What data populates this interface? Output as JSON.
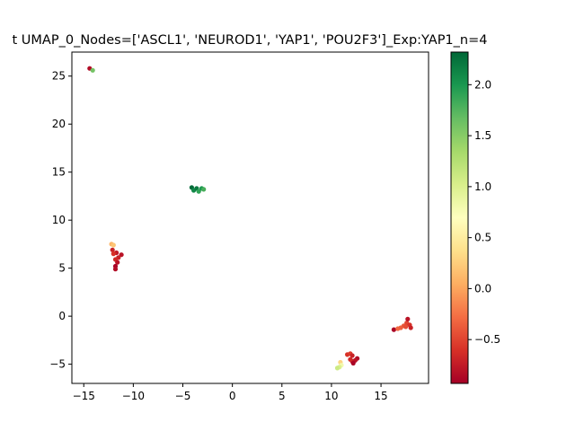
{
  "chart_data": {
    "type": "scatter",
    "title": "t UMAP_0_Nodes=['ASCL1', 'NEUROD1', 'YAP1', 'POU2F3']_Exp:YAP1_n=4",
    "xlabel": "",
    "ylabel": "",
    "xlim": [
      -16.2,
      19.8
    ],
    "ylim": [
      -7.0,
      27.5
    ],
    "xticks": [
      -15,
      -10,
      -5,
      0,
      5,
      10,
      15
    ],
    "yticks": [
      -5,
      0,
      5,
      10,
      15,
      20,
      25
    ],
    "grid": false,
    "colormap": "RdYlGn",
    "colorbar": {
      "range": [
        -0.93,
        2.32
      ],
      "ticks": [
        -0.5,
        0.0,
        0.5,
        1.0,
        1.5,
        2.0
      ],
      "tick_labels": [
        "−0.5",
        "0.0",
        "0.5",
        "1.0",
        "1.5",
        "2.0"
      ]
    },
    "points": [
      {
        "x": -14.4,
        "y": 25.8,
        "v": -0.85
      },
      {
        "x": -14.1,
        "y": 25.6,
        "v": 1.6
      },
      {
        "x": -4.1,
        "y": 13.4,
        "v": 2.3
      },
      {
        "x": -3.9,
        "y": 13.1,
        "v": 2.1
      },
      {
        "x": -3.6,
        "y": 13.3,
        "v": 2.2
      },
      {
        "x": -3.4,
        "y": 13.0,
        "v": 1.9
      },
      {
        "x": -3.1,
        "y": 13.3,
        "v": 2.0
      },
      {
        "x": -2.9,
        "y": 13.2,
        "v": 1.8
      },
      {
        "x": -12.2,
        "y": 7.5,
        "v": 0.1
      },
      {
        "x": -12.0,
        "y": 7.4,
        "v": 0.2
      },
      {
        "x": -12.1,
        "y": 6.9,
        "v": -0.7
      },
      {
        "x": -11.7,
        "y": 6.6,
        "v": -0.75
      },
      {
        "x": -12.0,
        "y": 6.5,
        "v": -0.6
      },
      {
        "x": -11.2,
        "y": 6.4,
        "v": -0.8
      },
      {
        "x": -11.5,
        "y": 6.1,
        "v": -0.7
      },
      {
        "x": -11.8,
        "y": 5.9,
        "v": -0.65
      },
      {
        "x": -11.6,
        "y": 5.6,
        "v": -0.8
      },
      {
        "x": -11.8,
        "y": 5.2,
        "v": -0.9
      },
      {
        "x": -11.8,
        "y": 4.9,
        "v": -0.85
      },
      {
        "x": 16.3,
        "y": -1.4,
        "v": -0.9
      },
      {
        "x": 16.7,
        "y": -1.3,
        "v": -0.3
      },
      {
        "x": 17.0,
        "y": -1.2,
        "v": -0.35
      },
      {
        "x": 17.3,
        "y": -1.0,
        "v": -0.4
      },
      {
        "x": 17.6,
        "y": -0.7,
        "v": -0.5
      },
      {
        "x": 17.7,
        "y": -0.3,
        "v": -0.8
      },
      {
        "x": 17.9,
        "y": -0.9,
        "v": -0.6
      },
      {
        "x": 18.0,
        "y": -1.2,
        "v": -0.7
      },
      {
        "x": 17.5,
        "y": -1.1,
        "v": -0.45
      },
      {
        "x": 11.6,
        "y": -4.0,
        "v": -0.6
      },
      {
        "x": 11.9,
        "y": -3.9,
        "v": -0.55
      },
      {
        "x": 12.1,
        "y": -4.1,
        "v": -0.7
      },
      {
        "x": 12.6,
        "y": -4.4,
        "v": -0.85
      },
      {
        "x": 12.4,
        "y": -4.6,
        "v": -0.8
      },
      {
        "x": 12.1,
        "y": -4.7,
        "v": -0.75
      },
      {
        "x": 11.9,
        "y": -4.5,
        "v": -0.65
      },
      {
        "x": 12.2,
        "y": -4.9,
        "v": -0.9
      },
      {
        "x": 10.9,
        "y": -4.8,
        "v": 0.3
      },
      {
        "x": 11.0,
        "y": -5.1,
        "v": 0.8
      },
      {
        "x": 10.8,
        "y": -5.3,
        "v": 1.0
      },
      {
        "x": 10.6,
        "y": -5.4,
        "v": 1.1
      }
    ]
  }
}
